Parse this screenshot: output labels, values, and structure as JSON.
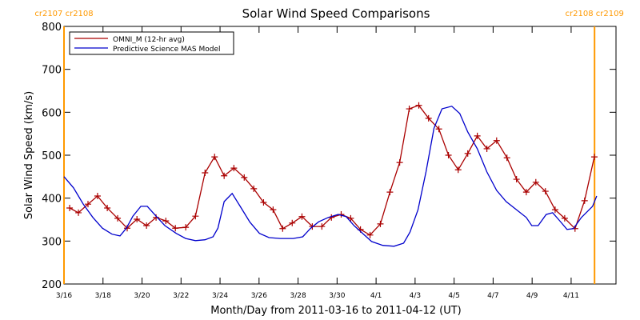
{
  "chart_data": {
    "type": "line",
    "title": "Solar Wind Speed Comparisons",
    "xlabel": "Month/Day from 2011-03-16 to 2011-04-12 (UT)",
    "ylabel": "Solar Wind Speed (km/s)",
    "xlim": [
      0,
      28.3
    ],
    "ylim": [
      200,
      800
    ],
    "xticks": [
      {
        "value": 0,
        "label": "3/16"
      },
      {
        "value": 2,
        "label": "3/18"
      },
      {
        "value": 4,
        "label": "3/20"
      },
      {
        "value": 6,
        "label": "3/22"
      },
      {
        "value": 8,
        "label": "3/24"
      },
      {
        "value": 10,
        "label": "3/26"
      },
      {
        "value": 12,
        "label": "3/28"
      },
      {
        "value": 14,
        "label": "3/30"
      },
      {
        "value": 16,
        "label": "4/1"
      },
      {
        "value": 18,
        "label": "4/3"
      },
      {
        "value": 20,
        "label": "4/5"
      },
      {
        "value": 22,
        "label": "4/7"
      },
      {
        "value": 24,
        "label": "4/9"
      },
      {
        "value": 26,
        "label": "4/11"
      }
    ],
    "yticks": [
      200,
      300,
      400,
      500,
      600,
      700,
      800
    ],
    "grid": false,
    "legend": "top-left",
    "annotations": [
      {
        "text": "cr2107 cr2108",
        "x": 0,
        "color": "#ff9900"
      },
      {
        "text": "cr2108 cr2109",
        "x": 27.2,
        "color": "#ff9900"
      }
    ],
    "series": [
      {
        "name": "OMNI_M (12-hr avg)",
        "color": "#aa0000",
        "markers": true,
        "x": [
          0.29,
          0.74,
          1.23,
          1.72,
          2.22,
          2.75,
          3.24,
          3.74,
          4.23,
          4.72,
          5.22,
          5.71,
          6.24,
          6.74,
          7.23,
          7.72,
          8.21,
          8.71,
          9.24,
          9.73,
          10.23,
          10.72,
          11.21,
          11.7,
          12.2,
          12.73,
          13.22,
          13.71,
          14.21,
          14.7,
          15.2,
          15.69,
          16.22,
          16.71,
          17.21,
          17.7,
          18.19,
          18.69,
          19.22,
          19.71,
          20.21,
          20.7,
          21.19,
          21.68,
          22.18,
          22.71,
          23.2,
          23.7,
          24.19,
          24.68,
          25.18,
          25.67,
          26.2,
          26.69,
          27.19
        ],
        "values": [
          377,
          366,
          386,
          405,
          377,
          353,
          330,
          351,
          336,
          355,
          347,
          330,
          332,
          358,
          459,
          496,
          452,
          470,
          448,
          422,
          390,
          373,
          329,
          342,
          357,
          334,
          334,
          355,
          362,
          353,
          327,
          314,
          340,
          414,
          483,
          608,
          616,
          586,
          561,
          500,
          466,
          504,
          545,
          515,
          534,
          494,
          444,
          414,
          437,
          416,
          373,
          353,
          329,
          394,
          496
        ]
      },
      {
        "name": "Predictive Science MAS Model",
        "color": "#0000cc",
        "markers": false,
        "x": [
          0,
          0.49,
          0.99,
          1.48,
          1.97,
          2.46,
          2.87,
          3.2,
          3.53,
          3.94,
          4.27,
          4.72,
          5.17,
          5.75,
          6.24,
          6.74,
          7.23,
          7.64,
          7.89,
          8.21,
          8.62,
          9.03,
          9.53,
          10.02,
          10.51,
          11.09,
          11.75,
          12.24,
          12.65,
          13.06,
          13.55,
          14.05,
          14.46,
          14.87,
          15.28,
          15.77,
          16.34,
          16.92,
          17.41,
          17.74,
          18.15,
          18.56,
          18.97,
          19.38,
          19.88,
          20.29,
          20.7,
          21.19,
          21.68,
          22.18,
          22.67,
          23.2,
          23.7,
          23.98,
          24.31,
          24.72,
          25.05,
          25.38,
          25.79,
          26.12,
          26.53,
          27.1,
          27.31
        ],
        "values": [
          450,
          424,
          386,
          355,
          330,
          316,
          312,
          330,
          358,
          381,
          381,
          358,
          336,
          318,
          306,
          301,
          303,
          310,
          330,
          392,
          411,
          381,
          344,
          318,
          308,
          306,
          306,
          310,
          330,
          345,
          355,
          362,
          357,
          336,
          319,
          299,
          290,
          288,
          295,
          321,
          373,
          461,
          563,
          608,
          614,
          597,
          554,
          515,
          461,
          418,
          392,
          373,
          355,
          336,
          336,
          362,
          366,
          349,
          327,
          329,
          355,
          381,
          405
        ]
      }
    ]
  }
}
